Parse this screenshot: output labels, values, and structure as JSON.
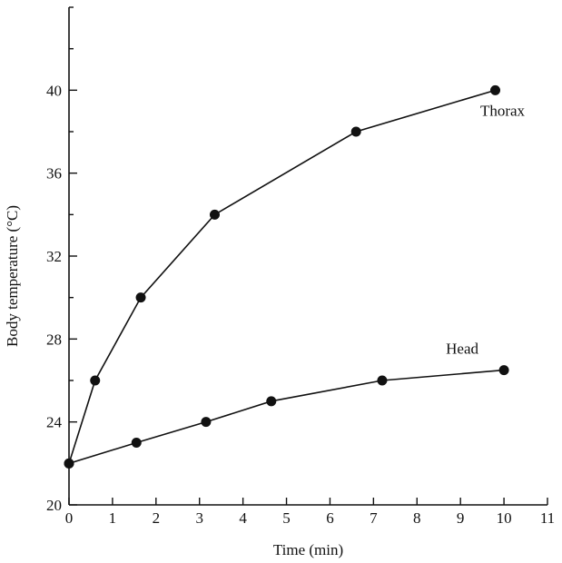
{
  "chart_data": {
    "type": "line",
    "title": "",
    "xlabel": "Time (min)",
    "ylabel": "Body temperature (°C)",
    "xlim": [
      0,
      11
    ],
    "ylim": [
      20,
      44
    ],
    "x_ticks": [
      0,
      1,
      2,
      3,
      4,
      5,
      6,
      7,
      8,
      9,
      10,
      11
    ],
    "y_ticks": [
      20,
      24,
      28,
      32,
      36,
      40
    ],
    "grid": false,
    "legend": "none",
    "series": [
      {
        "name": "Thorax",
        "color": "#111111",
        "x": [
          0,
          0.6,
          1.65,
          3.35,
          6.6,
          9.8
        ],
        "y": [
          22,
          26,
          30,
          34,
          38,
          40
        ]
      },
      {
        "name": "Head",
        "color": "#111111",
        "x": [
          0,
          1.55,
          3.15,
          4.65,
          7.2,
          10.0
        ],
        "y": [
          22,
          23,
          24,
          25,
          26,
          26.5
        ]
      }
    ]
  }
}
